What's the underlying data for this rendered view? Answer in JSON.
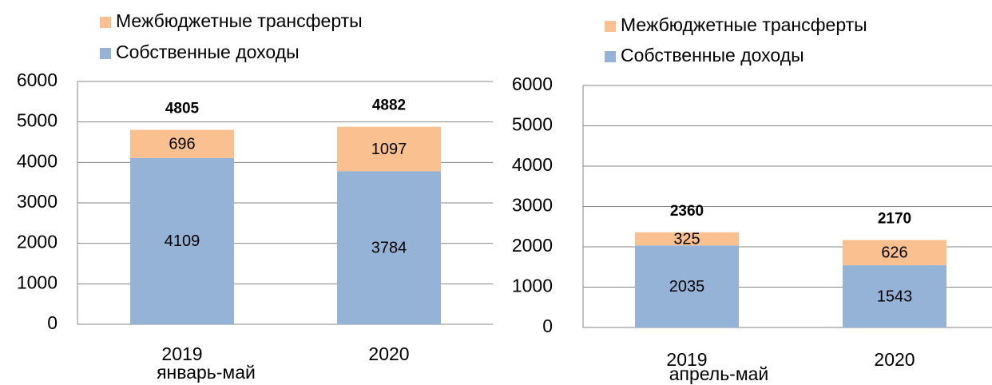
{
  "chart_data": [
    {
      "type": "stacked_bar",
      "x_label": "январь-май",
      "categories": [
        "2019",
        "2020"
      ],
      "series": [
        {
          "name": "Собственные доходы",
          "color": "#95b3d7",
          "values": [
            4109,
            3784
          ]
        },
        {
          "name": "Межбюджетные трансферты",
          "color": "#fac090",
          "values": [
            696,
            1097
          ]
        }
      ],
      "totals": [
        4805,
        4882
      ],
      "ylim": [
        0,
        6000
      ],
      "yticks": [
        0,
        1000,
        2000,
        3000,
        4000,
        5000,
        6000
      ],
      "grid": true
    },
    {
      "type": "stacked_bar",
      "x_label": "апрель-май",
      "categories": [
        "2019",
        "2020"
      ],
      "series": [
        {
          "name": "Собственные доходы",
          "color": "#95b3d7",
          "values": [
            2035,
            1543
          ]
        },
        {
          "name": "Межбюджетные трансферты",
          "color": "#fac090",
          "values": [
            325,
            626
          ]
        }
      ],
      "totals": [
        2360,
        2170
      ],
      "ylim": [
        0,
        6000
      ],
      "yticks": [
        0,
        1000,
        2000,
        3000,
        4000,
        5000,
        6000
      ],
      "grid": true
    }
  ]
}
